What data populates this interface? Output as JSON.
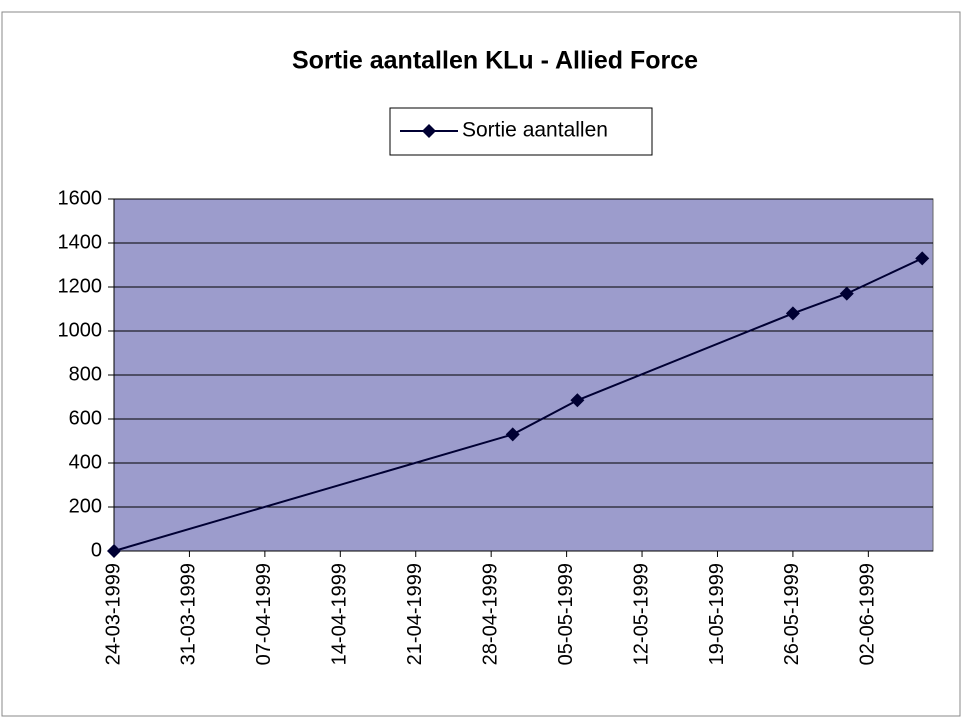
{
  "chart_data": {
    "type": "line",
    "title": "Sortie aantallen KLu - Allied Force",
    "x": [
      "24-03-1999",
      "30-04-1999",
      "06-05-1999",
      "26-05-1999",
      "31-05-1999",
      "07-06-1999"
    ],
    "series": [
      {
        "name": "Sortie aantallen",
        "color": "#000033",
        "values": [
          0,
          530,
          685,
          1080,
          1170,
          1330
        ]
      }
    ],
    "xlim": [
      "24-03-1999",
      "08-06-1999"
    ],
    "xticks": [
      "24-03-1999",
      "31-03-1999",
      "07-04-1999",
      "14-04-1999",
      "21-04-1999",
      "28-04-1999",
      "05-05-1999",
      "12-05-1999",
      "19-05-1999",
      "26-05-1999",
      "02-06-1999"
    ],
    "ylim": [
      0,
      1600
    ],
    "yticks": [
      0,
      200,
      400,
      600,
      800,
      1000,
      1200,
      1400,
      1600
    ],
    "grid": true,
    "legend": "top",
    "plot_background": "#9c9ccc"
  }
}
